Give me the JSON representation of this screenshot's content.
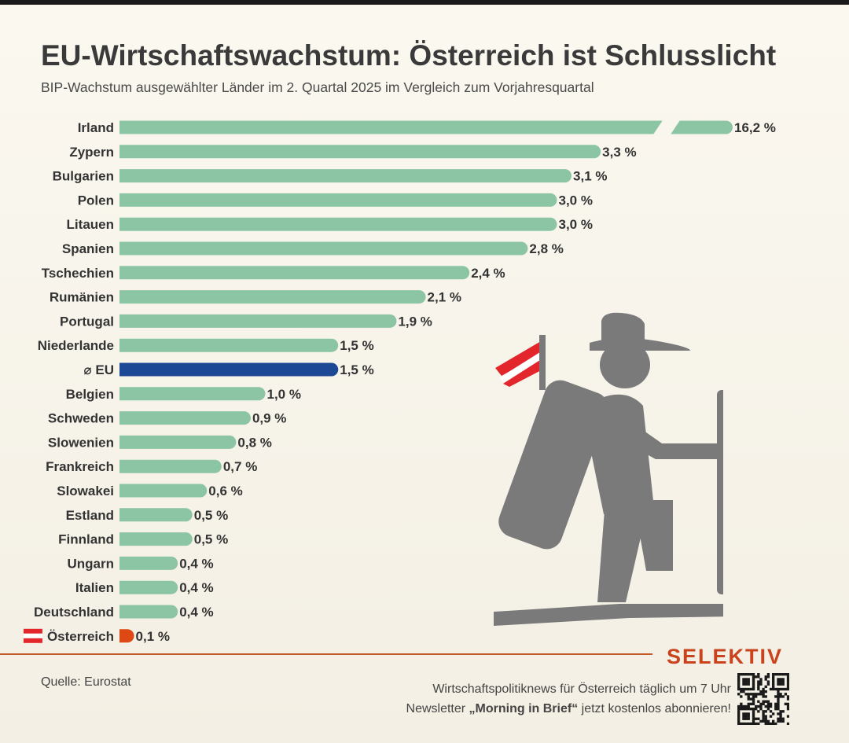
{
  "header": {
    "title": "EU-Wirtschaftswachstum: Österreich ist Schlusslicht",
    "subtitle": "BIP-Wachstum ausgewählter Länder im 2. Quartal 2025 im Vergleich zum Vorjahresquartal"
  },
  "chart_data": {
    "type": "bar",
    "orientation": "horizontal",
    "title": "EU-Wirtschaftswachstum: Österreich ist Schlusslicht",
    "subtitle": "BIP-Wachstum ausgewählter Länder im 2. Quartal 2025 im Vergleich zum Vorjahresquartal",
    "xlabel": "",
    "ylabel": "",
    "unit": "%",
    "axis_break": {
      "category": "Irland",
      "note": "Balken gekürzt (Achsenbruch)"
    },
    "categories": [
      "Irland",
      "Zypern",
      "Bulgarien",
      "Polen",
      "Litauen",
      "Spanien",
      "Tschechien",
      "Rumänien",
      "Portugal",
      "Niederlande",
      "⌀ EU",
      "Belgien",
      "Schweden",
      "Slowenien",
      "Frankreich",
      "Slowakei",
      "Estland",
      "Finnland",
      "Ungarn",
      "Italien",
      "Deutschland",
      "Österreich"
    ],
    "values": [
      16.2,
      3.3,
      3.1,
      3.0,
      3.0,
      2.8,
      2.4,
      2.1,
      1.9,
      1.5,
      1.5,
      1.0,
      0.9,
      0.8,
      0.7,
      0.6,
      0.5,
      0.5,
      0.4,
      0.4,
      0.4,
      0.1
    ],
    "value_labels": [
      "16,2 %",
      "3,3 %",
      "3,1 %",
      "3,0 %",
      "3,0 %",
      "2,8 %",
      "2,4 %",
      "2,1 %",
      "1,9 %",
      "1,5 %",
      "1,5 %",
      "1,0 %",
      "0,9 %",
      "0,8 %",
      "0,7 %",
      "0,6 %",
      "0,5 %",
      "0,5 %",
      "0,4 %",
      "0,4 %",
      "0,4 %",
      "0,1 %"
    ],
    "highlight": {
      "⌀ EU": "eu",
      "Österreich": "austria"
    }
  },
  "colors": {
    "bar": "#8cc5a4",
    "eu_bar": "#1c4896",
    "austria_bar": "#dd4815",
    "flag_red": "#e2262c",
    "flag_white": "#ffffff",
    "brand": "#c9431c",
    "illustration": "#7a7a7a"
  },
  "icons": {
    "austria_flag": "austria-flag-icon",
    "illustration": "hiker-illustration-icon",
    "qr": "qr-code-icon"
  },
  "footer": {
    "brand": "SELEKTIV",
    "source": "Quelle: Eurostat",
    "promo_line1": "Wirtschaftspolitiknews für Österreich täglich um 7 Uhr",
    "promo_line2_prefix": "Newsletter ",
    "promo_line2_bold": "„Morning in Brief“",
    "promo_line2_suffix": " jetzt kostenlos abonnieren!"
  }
}
